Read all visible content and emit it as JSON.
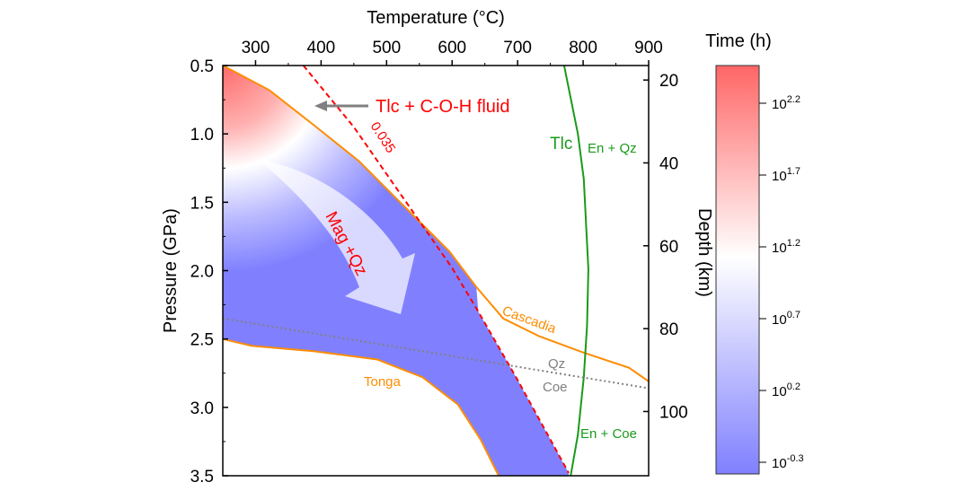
{
  "chart_data": {
    "type": "area",
    "xlabel": "Temperature (°C)",
    "ylabel": "Pressure (GPa)",
    "y2label": "Depth (km)",
    "xlim": [
      250,
      900
    ],
    "ylim": [
      3.5,
      0.5
    ],
    "xticks": [
      300,
      400,
      500,
      600,
      700,
      800,
      900
    ],
    "yticks": [
      0.5,
      1.0,
      1.5,
      2.0,
      2.5,
      3.0,
      3.5
    ],
    "ytick_labels": [
      "0.5",
      "1.0",
      "1.5",
      "2.0",
      "2.5",
      "3.0",
      "3.5"
    ],
    "y2ticks": [
      20,
      40,
      60,
      80,
      100
    ],
    "colorbar": {
      "label": "Time (h)",
      "ticks": [
        {
          "exp": 2.2,
          "label_base": "10",
          "label_exp": "2.2"
        },
        {
          "exp": 1.7,
          "label_base": "10",
          "label_exp": "1.7"
        },
        {
          "exp": 1.2,
          "label_base": "10",
          "label_exp": "1.2"
        },
        {
          "exp": 0.7,
          "label_base": "10",
          "label_exp": "0.7"
        },
        {
          "exp": 0.2,
          "label_base": "10",
          "label_exp": "0.2"
        },
        {
          "exp": -0.3,
          "label_base": "10",
          "label_exp": "-0.3"
        }
      ],
      "colors": {
        "high": "#ff6666",
        "mid": "#ffffff",
        "low": "#8080ff"
      }
    },
    "series": [
      {
        "name": "Cascadia",
        "color": "#ff8c00",
        "style": "solid",
        "x": [
          250,
          321,
          390,
          458,
          527,
          596,
          637,
          678,
          733,
          801,
          870,
          900
        ],
        "y": [
          0.5,
          0.68,
          0.94,
          1.2,
          1.53,
          1.86,
          2.12,
          2.35,
          2.48,
          2.6,
          2.71,
          2.81
        ]
      },
      {
        "name": "Tonga",
        "color": "#ff8c00",
        "style": "solid",
        "x": [
          250,
          294,
          390,
          486,
          555,
          609,
          644,
          671
        ],
        "y": [
          2.5,
          2.55,
          2.59,
          2.65,
          2.78,
          2.98,
          3.24,
          3.5
        ]
      },
      {
        "name": "0.035",
        "color": "#ff0000",
        "style": "dashed",
        "x": [
          373,
          450,
          530,
          600,
          640,
          700,
          778
        ],
        "y": [
          0.5,
          0.95,
          1.5,
          1.98,
          2.3,
          2.8,
          3.48
        ]
      },
      {
        "name": "Tlc",
        "color": "#1a9a1a",
        "style": "solid",
        "x": [
          771,
          792,
          801,
          808,
          806,
          801,
          792,
          781
        ],
        "y": [
          0.5,
          1.0,
          1.33,
          1.99,
          2.4,
          2.78,
          3.2,
          3.5
        ]
      },
      {
        "name": "Qz-Coe",
        "color": "#808080",
        "style": "dotted",
        "x": [
          250,
          900
        ],
        "y": [
          2.35,
          2.86
        ]
      }
    ],
    "annotations": {
      "tlc_fluid": "Tlc + C-O-H fluid",
      "dashed_label": "0.035",
      "mag_qz": "Mag +Qz",
      "tlc": "Tlc",
      "en_qz": "En + Qz",
      "en_coe": "En + Coe",
      "qz": "Qz",
      "coe": "Coe",
      "cascadia": "Cascadia",
      "tonga": "Tonga"
    }
  }
}
